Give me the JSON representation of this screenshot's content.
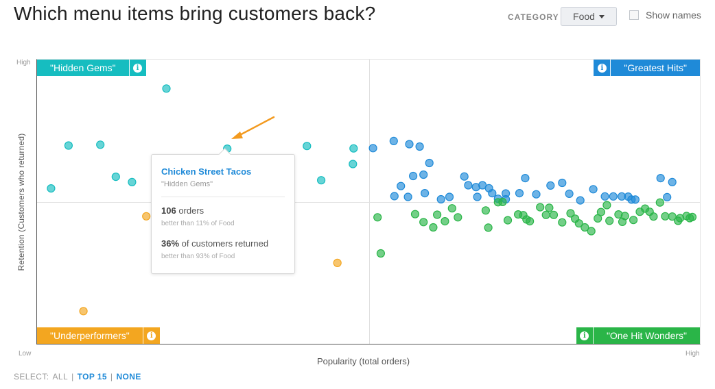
{
  "header": {
    "title": "Which menu items bring customers back?",
    "category_label": "CATEGORY",
    "category_value": "Food",
    "show_names_label": "Show names"
  },
  "quadrants": {
    "top_left": "\"Hidden Gems\"",
    "top_right": "\"Greatest Hits\"",
    "bottom_left": "\"Underperformers\"",
    "bottom_right": "\"One Hit Wonders\""
  },
  "axes": {
    "x_title": "Popularity (total orders)",
    "y_title": "Retention (Customers who returned)",
    "high_y": "High",
    "low": "Low",
    "high_x": "High"
  },
  "tooltip": {
    "name": "Chicken Street Tacos",
    "group": "\"Hidden Gems\"",
    "orders_value": "106",
    "orders_unit": "orders",
    "orders_compare": "better than 11% of Food",
    "retention_value": "36%",
    "retention_text": "of customers returned",
    "retention_compare": "better than 93% of Food"
  },
  "select": {
    "label": "SELECT:",
    "all": "ALL",
    "top15": "TOP 15",
    "none": "NONE",
    "sep": "|"
  },
  "colors": {
    "hidden_gems": "#16bdc0",
    "greatest_hits": "#1f8ad8",
    "underperformers": "#f3a620",
    "one_hit_wonders": "#2ab548",
    "highlight_arrow": "#f39a1f"
  },
  "chart_data": {
    "type": "scatter",
    "xlabel": "Popularity (total orders)",
    "ylabel": "Retention (Customers who returned)",
    "xlim": [
      0,
      100
    ],
    "ylim": [
      0,
      100
    ],
    "series": [
      {
        "name": "\"Hidden Gems\"",
        "color": "#16bdc0",
        "points": [
          [
            18.8,
            92.7
          ],
          [
            3.7,
            71.2
          ],
          [
            8.6,
            71.5
          ],
          [
            28.2,
            70.0
          ],
          [
            40.5,
            71.0
          ],
          [
            47.7,
            70.1
          ],
          [
            1.0,
            55.0
          ],
          [
            11.0,
            59.4
          ],
          [
            13.5,
            57.4
          ],
          [
            42.7,
            58.1
          ],
          [
            47.6,
            64.2
          ]
        ]
      },
      {
        "name": "\"Greatest Hits\"",
        "color": "#1f8ad8",
        "points": [
          [
            50.7,
            70.2
          ],
          [
            53.9,
            72.9
          ],
          [
            56.3,
            71.7
          ],
          [
            57.9,
            70.8
          ],
          [
            59.4,
            64.6
          ],
          [
            58.5,
            60.2
          ],
          [
            56.9,
            59.7
          ],
          [
            54.0,
            52.1
          ],
          [
            55.0,
            55.9
          ],
          [
            56.1,
            51.8
          ],
          [
            58.7,
            53.2
          ],
          [
            61.2,
            50.9
          ],
          [
            65.4,
            56.2
          ],
          [
            66.6,
            55.5
          ],
          [
            67.6,
            56.2
          ],
          [
            68.6,
            55.1
          ],
          [
            66.8,
            51.8
          ],
          [
            64.8,
            59.5
          ],
          [
            62.5,
            51.8
          ],
          [
            69.1,
            53.2
          ],
          [
            70.0,
            51.1
          ],
          [
            71.2,
            53.1
          ],
          [
            71.2,
            50.9
          ],
          [
            73.3,
            53.2
          ],
          [
            74.2,
            58.9
          ],
          [
            75.9,
            52.8
          ],
          [
            78.1,
            56.1
          ],
          [
            79.9,
            57.1
          ],
          [
            81.0,
            53.0
          ],
          [
            82.7,
            50.5
          ],
          [
            84.7,
            54.7
          ],
          [
            86.5,
            52.0
          ],
          [
            87.8,
            52.0
          ],
          [
            89.1,
            52.0
          ],
          [
            90.1,
            51.9
          ],
          [
            90.6,
            50.8
          ],
          [
            91.2,
            50.8
          ],
          [
            95.1,
            58.9
          ],
          [
            96.1,
            51.7
          ],
          [
            96.9,
            57.4
          ]
        ]
      },
      {
        "name": "\"Underperformers\"",
        "color": "#f3a620",
        "points": [
          [
            15.7,
            44.5
          ],
          [
            45.2,
            26.9
          ],
          [
            6.0,
            8.7
          ]
        ]
      },
      {
        "name": "\"One Hit Wonders\"",
        "color": "#2ab548",
        "points": [
          [
            51.4,
            44.1
          ],
          [
            51.9,
            30.5
          ],
          [
            57.2,
            45.3
          ],
          [
            58.5,
            42.3
          ],
          [
            60.0,
            40.3
          ],
          [
            60.6,
            45.1
          ],
          [
            61.8,
            42.6
          ],
          [
            62.9,
            47.5
          ],
          [
            63.8,
            44.1
          ],
          [
            68.1,
            46.7
          ],
          [
            68.5,
            40.2
          ],
          [
            70.0,
            49.8
          ],
          [
            70.7,
            49.9
          ],
          [
            71.5,
            43.0
          ],
          [
            73.1,
            45.2
          ],
          [
            73.9,
            44.9
          ],
          [
            74.4,
            43.3
          ],
          [
            74.9,
            42.6
          ],
          [
            76.5,
            47.9
          ],
          [
            77.4,
            45.0
          ],
          [
            77.9,
            47.7
          ],
          [
            78.6,
            45.0
          ],
          [
            79.9,
            42.2
          ],
          [
            81.2,
            45.6
          ],
          [
            81.9,
            43.6
          ],
          [
            82.5,
            41.8
          ],
          [
            83.4,
            40.3
          ],
          [
            84.4,
            38.9
          ],
          [
            85.4,
            43.7
          ],
          [
            85.9,
            46.1
          ],
          [
            86.8,
            48.7
          ],
          [
            87.2,
            42.8
          ],
          [
            88.6,
            45.2
          ],
          [
            89.2,
            42.4
          ],
          [
            89.6,
            44.6
          ],
          [
            90.9,
            43.1
          ],
          [
            91.9,
            46.2
          ],
          [
            92.7,
            47.4
          ],
          [
            93.4,
            46.2
          ],
          [
            94.0,
            44.4
          ],
          [
            95.0,
            49.7
          ],
          [
            95.8,
            44.5
          ],
          [
            96.9,
            44.4
          ],
          [
            97.8,
            42.8
          ],
          [
            98.1,
            43.8
          ],
          [
            99.1,
            44.6
          ],
          [
            99.6,
            43.8
          ],
          [
            100.0,
            44.2
          ]
        ]
      }
    ],
    "highlighted_point": [
      28.2,
      70.0
    ]
  }
}
